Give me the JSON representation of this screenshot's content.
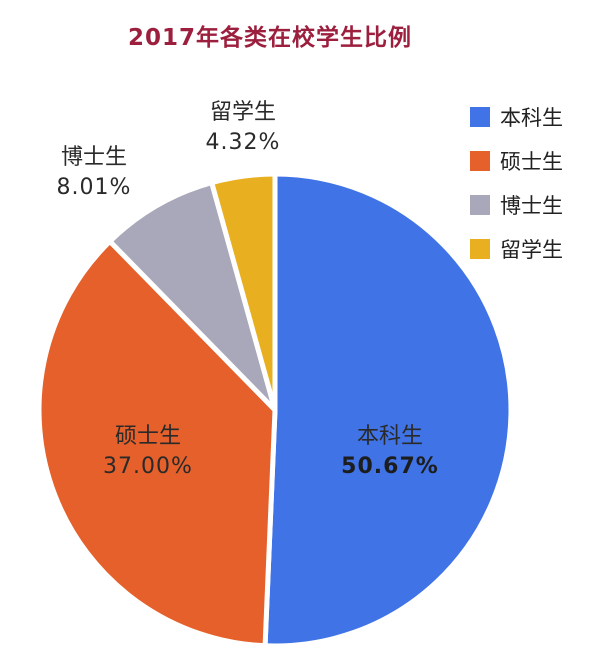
{
  "chart_data": {
    "type": "pie",
    "title": "2017年各类在校学生比例",
    "slices": [
      {
        "name": "本科生",
        "value": 50.67,
        "label": "50.67%",
        "color": "#3f73e6"
      },
      {
        "name": "硕士生",
        "value": 37.0,
        "label": "37.00%",
        "color": "#e5602a"
      },
      {
        "name": "博士生",
        "value": 8.01,
        "label": "8.01%",
        "color": "#a9a8bb"
      },
      {
        "name": "留学生",
        "value": 4.32,
        "label": "4.32%",
        "color": "#e8b020"
      }
    ],
    "legend": {
      "position": "top-right",
      "items": [
        "本科生",
        "硕士生",
        "博士生",
        "留学生"
      ]
    },
    "start": "12 o'clock",
    "direction": "clockwise"
  }
}
